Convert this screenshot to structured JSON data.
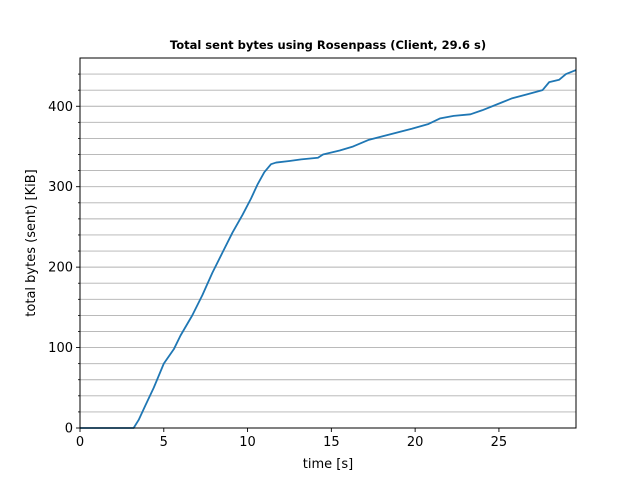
{
  "chart_data": {
    "type": "line",
    "title": "Total sent bytes using Rosenpass (Client, 29.6 s)",
    "xlabel": "time [s]",
    "ylabel": "total bytes (sent) [KiB]",
    "xlim": [
      0,
      29.6
    ],
    "ylim": [
      0,
      460
    ],
    "xticks": [
      0,
      5,
      10,
      15,
      20,
      25
    ],
    "yticks": [
      0,
      100,
      200,
      300,
      400
    ],
    "grid": "horizontal minor and major",
    "ygrid_step": 20,
    "line_color": "#1f77b4",
    "series": [
      {
        "x": [
          0,
          3.2,
          3.5,
          3.9,
          4.4,
          5.0,
          5.6,
          6.0,
          6.7,
          7.3,
          7.9,
          8.5,
          9.1,
          9.7,
          10.2,
          10.6,
          11.0,
          11.4,
          11.7,
          12.5,
          13.2,
          14.2,
          14.5,
          15.5,
          16.3,
          17.2,
          18.5,
          19.8,
          20.8,
          21.5,
          22.3,
          23.3,
          24.0,
          25.2,
          25.8,
          26.7,
          27.6,
          28.0,
          28.6,
          29.0,
          29.6
        ],
        "y": [
          0,
          0,
          10,
          28,
          50,
          80,
          98,
          115,
          140,
          165,
          193,
          218,
          243,
          265,
          285,
          303,
          318,
          328,
          330,
          332,
          334,
          336,
          340,
          345,
          350,
          358,
          365,
          372,
          378,
          385,
          388,
          390,
          395,
          405,
          410,
          415,
          420,
          430,
          433,
          440,
          445
        ]
      }
    ]
  }
}
